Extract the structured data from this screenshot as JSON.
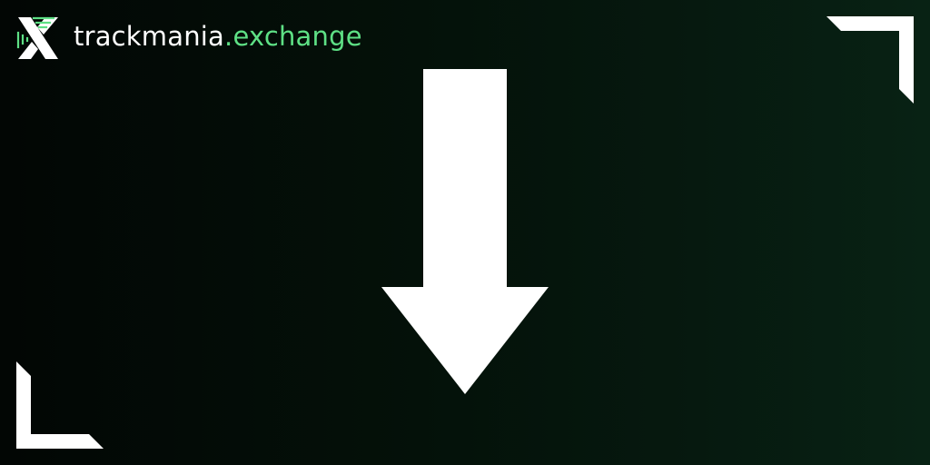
{
  "brand": {
    "name_main": "trackmania",
    "name_accent": ".exchange",
    "logo_icon": "tmx-logo-icon",
    "accent_color": "#5ee085",
    "text_color": "#ffffff"
  },
  "graphics": {
    "arrow_icon": "arrow-down-icon",
    "arrow_color": "#ffffff",
    "corner_icons": [
      "corner-bracket-top-right-icon",
      "corner-bracket-bottom-left-icon"
    ]
  },
  "background": {
    "start_color": "#020604",
    "end_color": "#082214"
  }
}
